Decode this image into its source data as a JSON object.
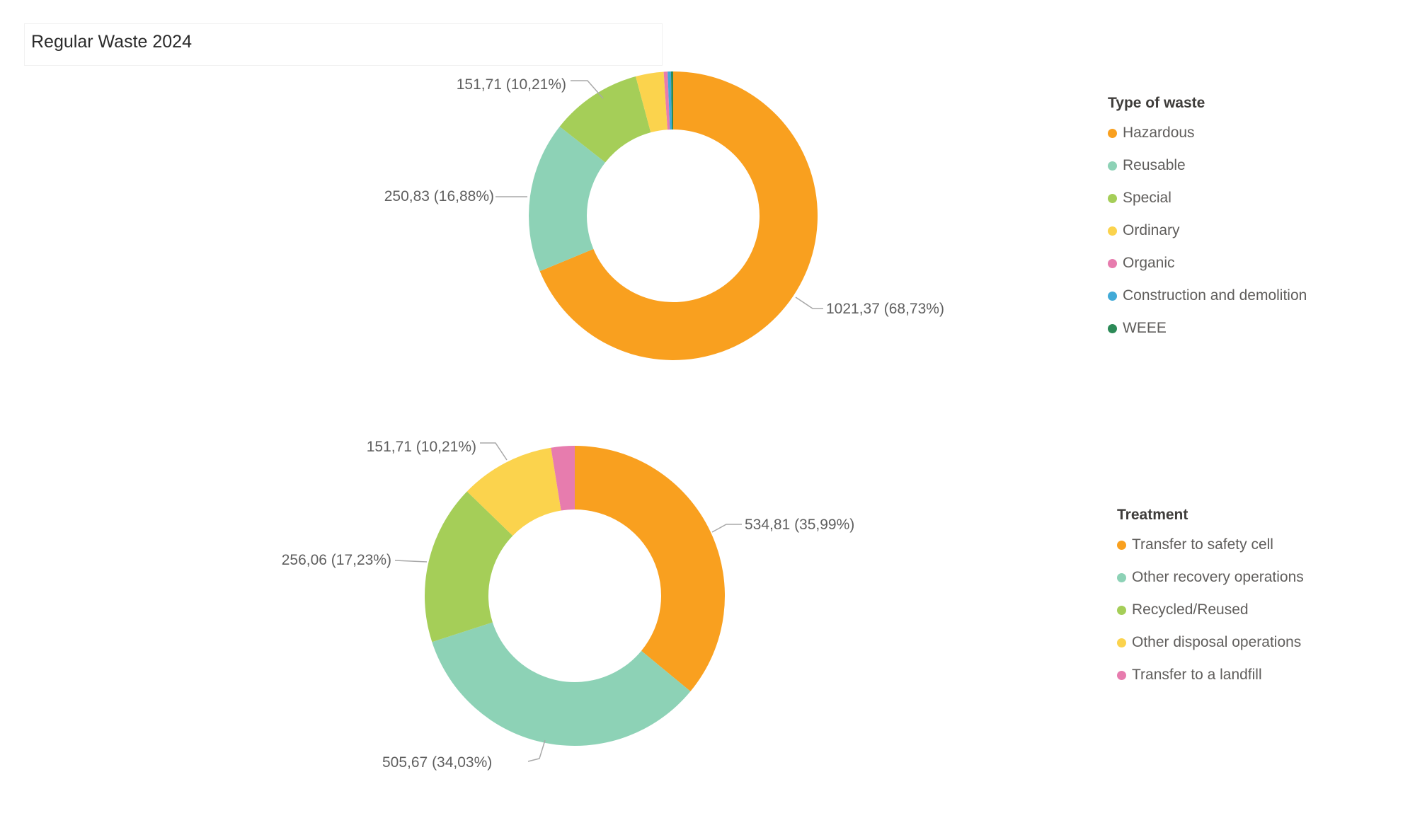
{
  "page": {
    "title": "Regular Waste 2024"
  },
  "colors": {
    "title_text": "#2b2b2b",
    "data_label_text": "#5f5f5f",
    "legend_text": "#605e5c",
    "legend_title_text": "#3f3d3b",
    "leader_line": "#a8a8a8"
  },
  "chart_data": [
    {
      "type": "pie",
      "subtype": "donut",
      "legend_title": "Type of waste",
      "legend_position": "right",
      "slices": [
        {
          "label": "Hazardous",
          "color": "#f9a01f",
          "value": 1021.37,
          "pct": 68.73,
          "data_label": "1021,37 (68,73%)"
        },
        {
          "label": "Reusable",
          "color": "#8dd2b6",
          "value": 250.83,
          "pct": 16.88,
          "data_label": "250,83 (16,88%)"
        },
        {
          "label": "Special",
          "color": "#a5ce58",
          "value": 151.71,
          "pct": 10.21,
          "data_label": "151,71 (10,21%)"
        },
        {
          "label": "Ordinary",
          "color": "#fbd34d",
          "value": 46.51,
          "pct": 3.13,
          "data_label": ""
        },
        {
          "label": "Organic",
          "color": "#e77cae",
          "value": 6.54,
          "pct": 0.44,
          "data_label": ""
        },
        {
          "label": "Construction and demolition",
          "color": "#41aad7",
          "value": 5.5,
          "pct": 0.37,
          "data_label": ""
        },
        {
          "label": "WEEE",
          "color": "#2c8a57",
          "value": 3.57,
          "pct": 0.24,
          "data_label": ""
        }
      ]
    },
    {
      "type": "pie",
      "subtype": "donut",
      "legend_title": "Treatment",
      "legend_position": "right",
      "slices": [
        {
          "label": "Transfer to safety cell",
          "color": "#f9a01f",
          "value": 534.81,
          "pct": 35.99,
          "data_label": "534,81 (35,99%)"
        },
        {
          "label": "Other recovery operations",
          "color": "#8dd2b6",
          "value": 505.67,
          "pct": 34.03,
          "data_label": "505,67 (34,03%)"
        },
        {
          "label": "Recycled/Reused",
          "color": "#a5ce58",
          "value": 256.06,
          "pct": 17.23,
          "data_label": "256,06 (17,23%)"
        },
        {
          "label": "Other disposal operations",
          "color": "#fbd34d",
          "value": 151.71,
          "pct": 10.21,
          "data_label": "151,71 (10,21%)"
        },
        {
          "label": "Transfer to a landfill",
          "color": "#e77cae",
          "value": 37.81,
          "pct": 2.54,
          "data_label": ""
        }
      ]
    }
  ]
}
